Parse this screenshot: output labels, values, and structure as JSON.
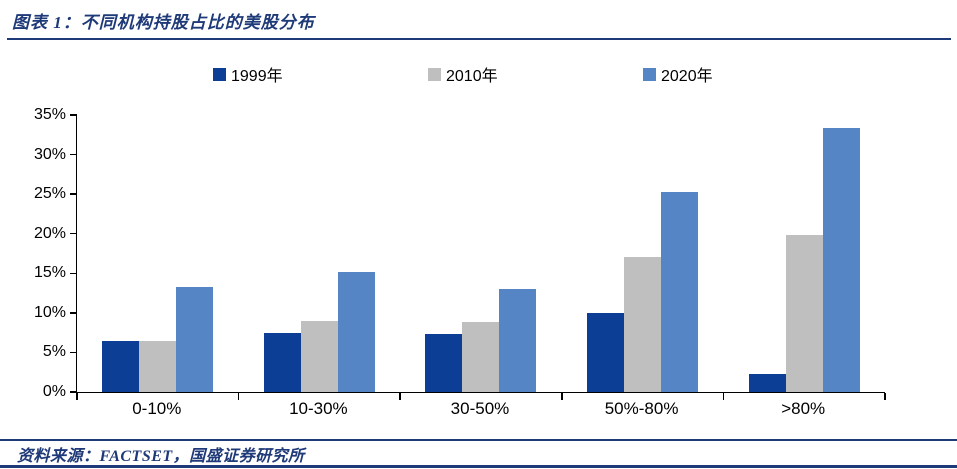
{
  "header": {
    "title": "图表 1：不同机构持股占比的美股分布",
    "accent_color": "#1F3A78"
  },
  "legend": [
    {
      "label": "1999年",
      "color": "#0D3E96"
    },
    {
      "label": "2010年",
      "color": "#BFBFBF"
    },
    {
      "label": "2020年",
      "color": "#5585C5"
    }
  ],
  "chart_data": {
    "type": "bar",
    "title": "图表 1：不同机构持股占比的美股分布",
    "categories": [
      "0-10%",
      "10-30%",
      "30-50%",
      "50%-80%",
      ">80%"
    ],
    "series": [
      {
        "name": "1999年",
        "color": "#0D3E96",
        "values": [
          6.5,
          7.5,
          7.3,
          10.0,
          2.3
        ]
      },
      {
        "name": "2010年",
        "color": "#BFBFBF",
        "values": [
          6.4,
          9.0,
          8.9,
          17.0,
          19.8
        ]
      },
      {
        "name": "2020年",
        "color": "#5585C5",
        "values": [
          13.3,
          15.2,
          13.0,
          25.3,
          33.4
        ]
      }
    ],
    "xlabel": "",
    "ylabel": "",
    "ylim": [
      0,
      35
    ],
    "ytick_step": 5,
    "ytick_labels": [
      "0%",
      "5%",
      "10%",
      "15%",
      "20%",
      "25%",
      "30%",
      "35%"
    ],
    "grid": false,
    "legend_position": "top"
  },
  "footer": {
    "source_text": "资料来源：FACTSET，国盛证券研究所"
  }
}
